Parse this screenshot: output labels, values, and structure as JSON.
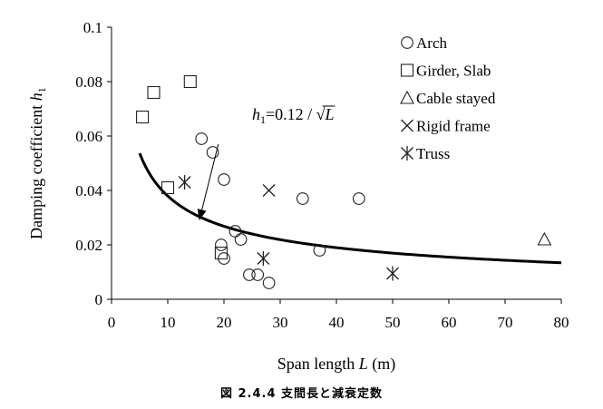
{
  "chart_data": {
    "type": "scatter",
    "xlabel_prefix": "Span length ",
    "xlabel_var": "L",
    "xlabel_suffix": " (m)",
    "ylabel_prefix": "Damping coefficient ",
    "ylabel_var": "h",
    "ylabel_sub": "1",
    "xlim": [
      0,
      80
    ],
    "ylim": [
      0,
      0.1
    ],
    "x_ticks": [
      0,
      10,
      20,
      30,
      40,
      50,
      60,
      70,
      80
    ],
    "y_ticks": [
      0,
      0.02,
      0.04,
      0.06,
      0.08,
      0.1
    ],
    "x_tick_labels": [
      "0",
      "10",
      "20",
      "30",
      "40",
      "50",
      "60",
      "70",
      "80"
    ],
    "y_tick_labels": [
      "0",
      "0.02",
      "0.04",
      "0.06",
      "0.08",
      "0.1"
    ],
    "grid": false,
    "legend": "top-right",
    "series": [
      {
        "name": "Arch",
        "marker": "circle",
        "points": [
          [
            16,
            0.059
          ],
          [
            18,
            0.054
          ],
          [
            20,
            0.044
          ],
          [
            22,
            0.025
          ],
          [
            23,
            0.022
          ],
          [
            19.5,
            0.02
          ],
          [
            20,
            0.015
          ],
          [
            24.5,
            0.009
          ],
          [
            26,
            0.009
          ],
          [
            28,
            0.006
          ],
          [
            34,
            0.037
          ],
          [
            37,
            0.018
          ],
          [
            44,
            0.037
          ]
        ]
      },
      {
        "name": "Girder, Slab",
        "marker": "square",
        "points": [
          [
            5.5,
            0.067
          ],
          [
            7.5,
            0.076
          ],
          [
            14,
            0.08
          ],
          [
            10,
            0.041
          ],
          [
            19.5,
            0.017
          ]
        ]
      },
      {
        "name": "Cable stayed",
        "marker": "triangle",
        "points": [
          [
            77,
            0.022
          ]
        ]
      },
      {
        "name": "Rigid frame",
        "marker": "x",
        "points": [
          [
            28,
            0.04
          ]
        ]
      },
      {
        "name": "Truss",
        "marker": "asterisk",
        "points": [
          [
            13,
            0.043
          ],
          [
            27,
            0.015
          ],
          [
            50,
            0.0095
          ]
        ]
      }
    ],
    "curve": {
      "coefficient": 0.12,
      "x_start": 5,
      "x_end": 80,
      "label_h": "h",
      "label_sub": "1",
      "label_mid": "=0.12 / ",
      "label_sqrt": "√",
      "label_var": "L",
      "arrow_from": [
        19,
        0.057
      ],
      "arrow_to": [
        15.6,
        0.029
      ]
    }
  },
  "caption": "図 2.4.4  支間長と減衰定数"
}
